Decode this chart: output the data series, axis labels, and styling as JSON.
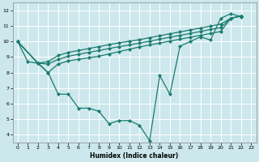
{
  "xlabel": "Humidex (Indice chaleur)",
  "bg_color": "#cce8ec",
  "line_color": "#1a7a6e",
  "grid_color": "#ffffff",
  "xlim": [
    -0.5,
    23.5
  ],
  "ylim": [
    3.5,
    12.5
  ],
  "xticks": [
    0,
    1,
    2,
    3,
    4,
    5,
    6,
    7,
    8,
    9,
    10,
    11,
    12,
    13,
    14,
    15,
    16,
    17,
    18,
    19,
    20,
    21,
    22,
    23
  ],
  "yticks": [
    4,
    5,
    6,
    7,
    8,
    9,
    10,
    11,
    12
  ],
  "line1_x": [
    0,
    1,
    2,
    3,
    4,
    5,
    6,
    7,
    8,
    9,
    10,
    11,
    12,
    13,
    14,
    15,
    16,
    17,
    18,
    19,
    20,
    21,
    22
  ],
  "line1_y": [
    10.0,
    8.7,
    8.6,
    8.0,
    6.6,
    6.6,
    5.7,
    5.7,
    5.5,
    4.7,
    4.9,
    4.9,
    4.6,
    3.6,
    7.8,
    6.6,
    9.7,
    10.0,
    10.3,
    10.1,
    11.5,
    11.8,
    11.6
  ],
  "line2_x": [
    0,
    2,
    3,
    4,
    5,
    6,
    7,
    8,
    9,
    10,
    11,
    12,
    13,
    14,
    15,
    16,
    17,
    18,
    19,
    20,
    21,
    22
  ],
  "line2_y": [
    10.0,
    8.6,
    8.0,
    8.55,
    8.75,
    8.85,
    8.95,
    9.05,
    9.2,
    9.35,
    9.5,
    9.65,
    9.78,
    9.9,
    10.03,
    10.15,
    10.28,
    10.4,
    10.52,
    10.65,
    11.5,
    11.65
  ],
  "line3_x": [
    0,
    2,
    3,
    4,
    5,
    6,
    7,
    8,
    9,
    10,
    11,
    12,
    13,
    14,
    15,
    16,
    17,
    18,
    19,
    20,
    21,
    22
  ],
  "line3_y": [
    10.0,
    8.6,
    8.55,
    8.85,
    9.05,
    9.18,
    9.3,
    9.42,
    9.55,
    9.67,
    9.78,
    9.9,
    10.02,
    10.15,
    10.28,
    10.4,
    10.52,
    10.65,
    10.78,
    10.9,
    11.5,
    11.65
  ],
  "line4_x": [
    0,
    2,
    3,
    4,
    5,
    6,
    7,
    8,
    9,
    10,
    11,
    12,
    13,
    14,
    15,
    16,
    17,
    18,
    19,
    20,
    21,
    22
  ],
  "line4_y": [
    10.0,
    8.6,
    8.7,
    9.1,
    9.3,
    9.42,
    9.55,
    9.67,
    9.8,
    9.92,
    10.02,
    10.12,
    10.25,
    10.38,
    10.5,
    10.62,
    10.75,
    10.87,
    11.0,
    11.12,
    11.5,
    11.65
  ]
}
